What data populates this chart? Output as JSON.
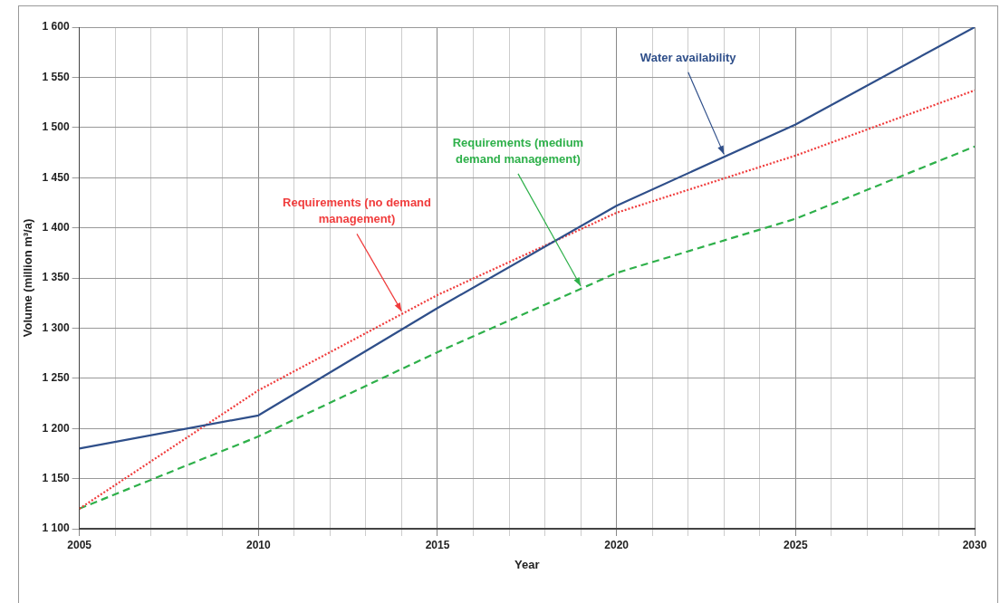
{
  "chart_data": {
    "type": "line",
    "xlabel": "Year",
    "ylabel": "Volume (million m³/a)",
    "x": [
      2005,
      2010,
      2015,
      2020,
      2025,
      2030
    ],
    "series": [
      {
        "name": "Water availability",
        "color": "#2f4f8a",
        "line_style": "solid",
        "values": [
          1180,
          1213,
          1320,
          1422,
          1503,
          1600
        ]
      },
      {
        "name": "Requirements (no demand management)",
        "color": "#f03c3c",
        "line_style": "dotted",
        "values": [
          1120,
          1238,
          1333,
          1415,
          1472,
          1537
        ]
      },
      {
        "name": "Requirements (medium demand management)",
        "color": "#2eb04a",
        "line_style": "dashed",
        "values": [
          1120,
          1192,
          1276,
          1355,
          1409,
          1481
        ]
      }
    ],
    "xlim": [
      2005,
      2030
    ],
    "xticks": [
      2005,
      {
        "value": 2006,
        "label": null
      },
      {
        "value": 2007,
        "label": null
      },
      {
        "value": 2008,
        "label": null
      },
      {
        "value": 2009,
        "label": null
      },
      2010,
      {
        "value": 2011,
        "label": null
      },
      {
        "value": 2012,
        "label": null
      },
      {
        "value": 2013,
        "label": null
      },
      {
        "value": 2014,
        "label": null
      },
      2015,
      {
        "value": 2016,
        "label": null
      },
      {
        "value": 2017,
        "label": null
      },
      {
        "value": 2018,
        "label": null
      },
      {
        "value": 2019,
        "label": null
      },
      2020,
      {
        "value": 2021,
        "label": null
      },
      {
        "value": 2022,
        "label": null
      },
      {
        "value": 2023,
        "label": null
      },
      {
        "value": 2024,
        "label": null
      },
      2025,
      {
        "value": 2026,
        "label": null
      },
      {
        "value": 2027,
        "label": null
      },
      {
        "value": 2028,
        "label": null
      },
      {
        "value": 2029,
        "label": null
      },
      2030
    ],
    "ylim": [
      1100,
      1600
    ],
    "yticks": [
      {
        "value": 1100,
        "label": "1 100"
      },
      {
        "value": 1150,
        "label": "1 150"
      },
      {
        "value": 1200,
        "label": "1 200"
      },
      {
        "value": 1250,
        "label": "1 250"
      },
      {
        "value": 1300,
        "label": "1 300"
      },
      {
        "value": 1350,
        "label": "1 350"
      },
      {
        "value": 1400,
        "label": "1 400"
      },
      {
        "value": 1450,
        "label": "1 450"
      },
      {
        "value": 1500,
        "label": "1 500"
      },
      {
        "value": 1550,
        "label": "1 550"
      },
      {
        "value": 1600,
        "label": "1 600"
      }
    ],
    "grid": true,
    "legend": false,
    "marker": "none"
  }
}
